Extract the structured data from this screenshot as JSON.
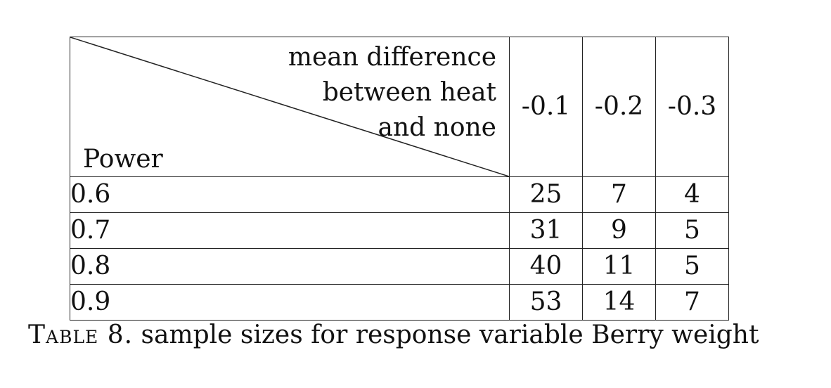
{
  "table": {
    "corner_header_lines": [
      "mean difference",
      "between heat",
      "and none"
    ],
    "corner_header": "mean difference\nbetween heat\nand none",
    "corner_row_label": "Power",
    "column_headers": [
      "-0.1",
      "-0.2",
      "-0.3"
    ],
    "rows": [
      {
        "label": "0.6",
        "values": [
          "25",
          "7",
          "4"
        ]
      },
      {
        "label": "0.7",
        "values": [
          "31",
          "9",
          "5"
        ]
      },
      {
        "label": "0.8",
        "values": [
          "40",
          "11",
          "5"
        ]
      },
      {
        "label": "0.9",
        "values": [
          "53",
          "14",
          "7"
        ]
      }
    ]
  },
  "caption": {
    "label": "Table 8.",
    "text": "sample sizes for response variable Berry weight"
  }
}
